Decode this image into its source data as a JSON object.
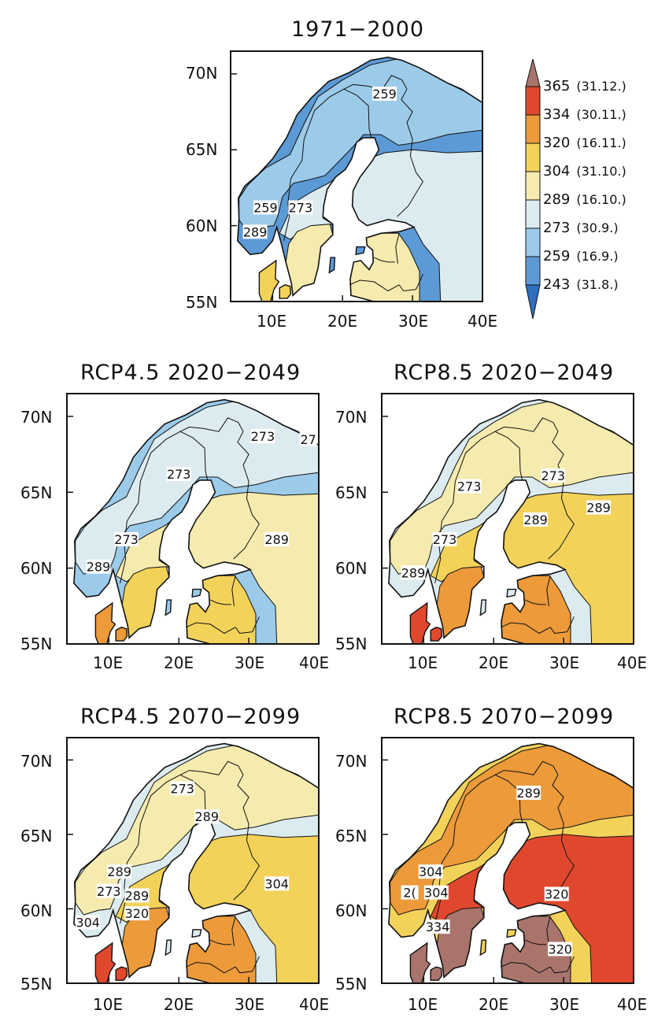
{
  "colors": {
    "sea": "#ffffff",
    "outline": "#111111",
    "classes": [
      "#2f6fbe",
      "#5c9ad6",
      "#9ccbea",
      "#dcebf0",
      "#f6ebae",
      "#f3d25a",
      "#ec9a3a",
      "#e0482e",
      "#a9746c"
    ]
  },
  "axes": {
    "x_ticks": [
      "10E",
      "20E",
      "30E",
      "40E"
    ],
    "y_ticks": [
      "70N",
      "65N",
      "60N",
      "55N"
    ]
  },
  "legend": {
    "items": [
      {
        "value": "365",
        "date": "(31.12.)"
      },
      {
        "value": "334",
        "date": "(30.11.)"
      },
      {
        "value": "320",
        "date": "(16.11.)"
      },
      {
        "value": "304",
        "date": "(31.10.)"
      },
      {
        "value": "289",
        "date": "(16.10.)"
      },
      {
        "value": "273",
        "date": "(30.9.)"
      },
      {
        "value": "259",
        "date": "(16.9.)"
      },
      {
        "value": "243",
        "date": "(31.8.)"
      }
    ]
  },
  "panels": [
    {
      "title": "1971−2000",
      "shift": 0,
      "labels": [
        {
          "text": "259",
          "lon": 26,
          "lat": 68.7
        },
        {
          "text": "259",
          "lon": 9,
          "lat": 61.2
        },
        {
          "text": "273",
          "lon": 14,
          "lat": 61.2
        },
        {
          "text": "289",
          "lon": 7.5,
          "lat": 59.6
        }
      ]
    },
    {
      "title": "RCP4.5  2020−2049",
      "shift": 1,
      "labels": [
        {
          "text": "273",
          "lon": 20,
          "lat": 66.2
        },
        {
          "text": "273",
          "lon": 32,
          "lat": 68.7
        },
        {
          "text": "27",
          "lon": 38.5,
          "lat": 68.5
        },
        {
          "text": "273",
          "lon": 12.5,
          "lat": 61.9
        },
        {
          "text": "289",
          "lon": 8.5,
          "lat": 60.1
        },
        {
          "text": "289",
          "lon": 34,
          "lat": 61.9
        }
      ]
    },
    {
      "title": "RCP8.5  2020−2049",
      "shift": 2,
      "labels": [
        {
          "text": "273",
          "lon": 16.5,
          "lat": 65.4
        },
        {
          "text": "273",
          "lon": 28.5,
          "lat": 66.1
        },
        {
          "text": "289",
          "lon": 26,
          "lat": 63.2
        },
        {
          "text": "289",
          "lon": 35,
          "lat": 64.0
        },
        {
          "text": "273",
          "lon": 13,
          "lat": 61.9
        },
        {
          "text": "289",
          "lon": 8.5,
          "lat": 59.7
        }
      ]
    },
    {
      "title": "RCP4.5  2070−2099",
      "shift": 2,
      "labels": [
        {
          "text": "273",
          "lon": 20.5,
          "lat": 68.1
        },
        {
          "text": "289",
          "lon": 24,
          "lat": 66.2
        },
        {
          "text": "289",
          "lon": 11.5,
          "lat": 62.5
        },
        {
          "text": "273",
          "lon": 10,
          "lat": 61.2
        },
        {
          "text": "289",
          "lon": 14,
          "lat": 60.9
        },
        {
          "text": "320",
          "lon": 14,
          "lat": 59.7
        },
        {
          "text": "304",
          "lon": 7,
          "lat": 59.1
        },
        {
          "text": "304",
          "lon": 34,
          "lat": 61.7
        }
      ]
    },
    {
      "title": "RCP8.5  2070−2099",
      "shift": 4,
      "labels": [
        {
          "text": "289",
          "lon": 25,
          "lat": 67.8
        },
        {
          "text": "304",
          "lon": 11,
          "lat": 62.5
        },
        {
          "text": "2(",
          "lon": 8,
          "lat": 61.1
        },
        {
          "text": "304",
          "lon": 11.8,
          "lat": 61.1
        },
        {
          "text": "320",
          "lon": 29,
          "lat": 61.0
        },
        {
          "text": "334",
          "lon": 12,
          "lat": 58.8
        },
        {
          "text": "320",
          "lon": 29.5,
          "lat": 57.3
        }
      ]
    }
  ]
}
